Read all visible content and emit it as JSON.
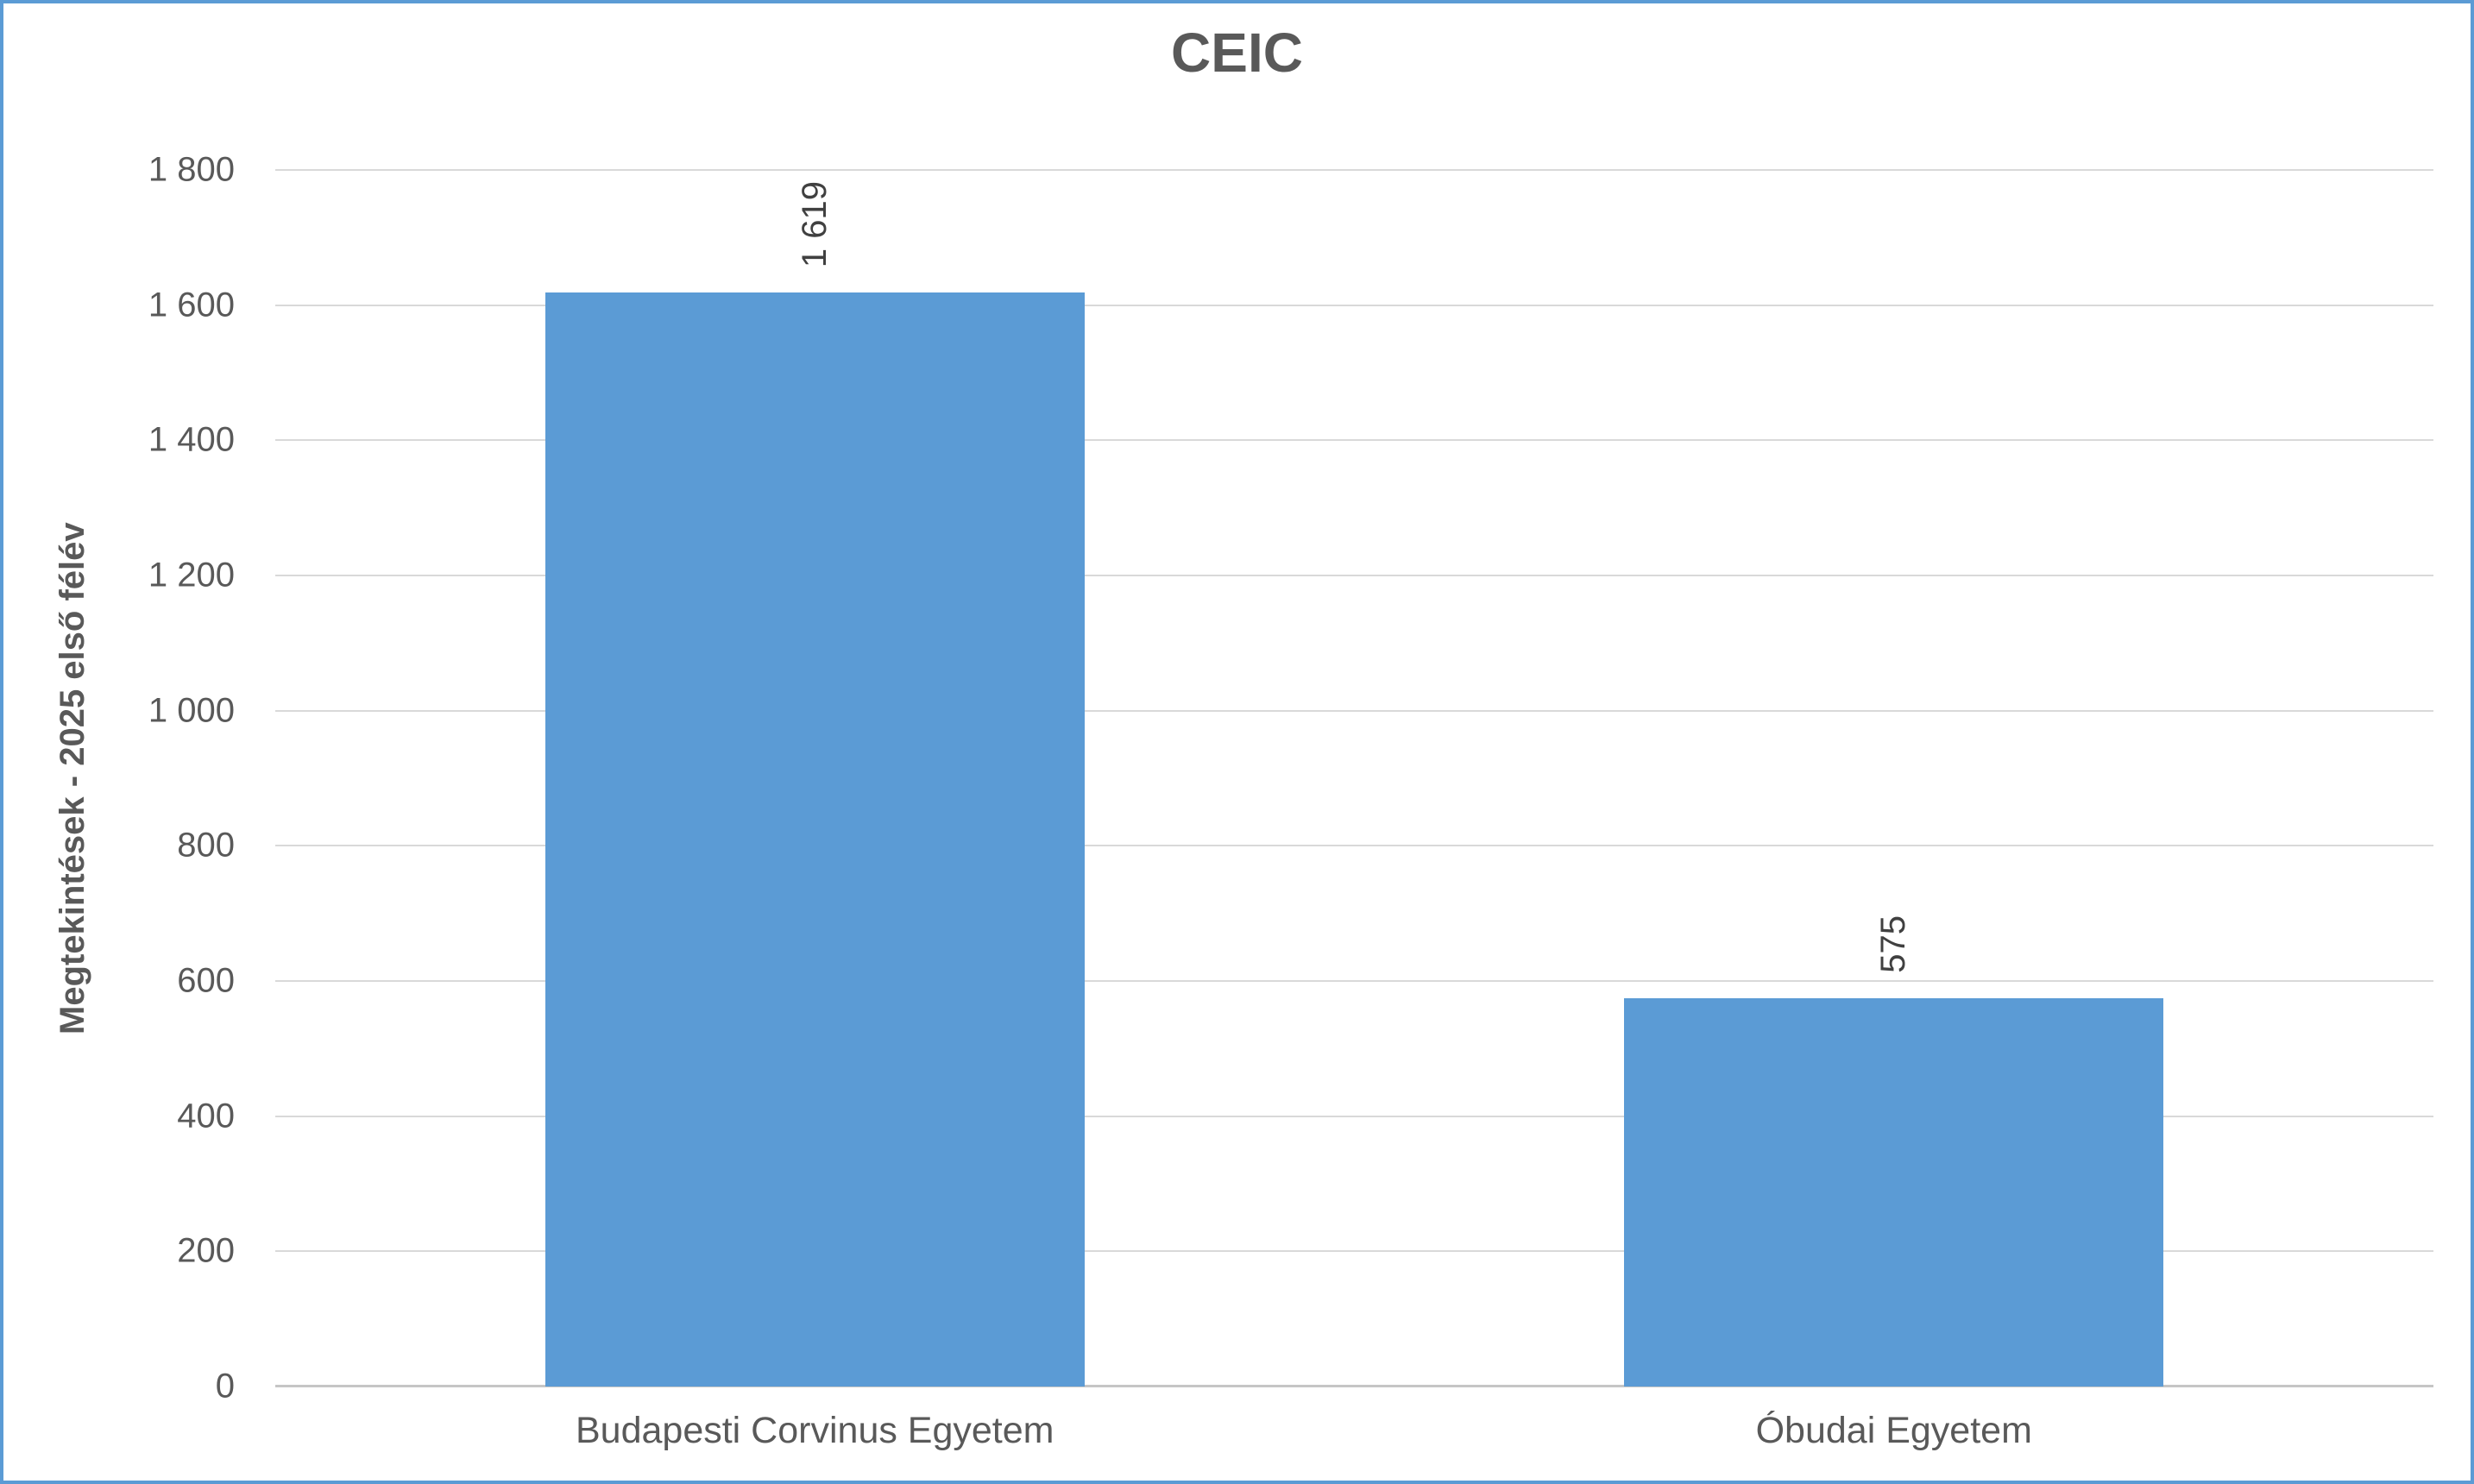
{
  "chart_data": {
    "type": "bar",
    "title": "CEIC",
    "xlabel": "",
    "ylabel": "Megtekintések - 2025 első félév",
    "categories": [
      "Budapesti Corvinus Egyetem",
      "Óbudai Egyetem"
    ],
    "values": [
      1619,
      575
    ],
    "value_labels": [
      "1 619",
      "575"
    ],
    "yticks": [
      0,
      200,
      400,
      600,
      800,
      1000,
      1200,
      1400,
      1600,
      1800
    ],
    "ytick_labels": [
      "0",
      "200",
      "400",
      "600",
      "800",
      "1 000",
      "1 200",
      "1 400",
      "1 600",
      "1 800"
    ],
    "ylim": [
      0,
      1800
    ],
    "grid": true,
    "legend": false,
    "value_label_rotation": -90,
    "colors": {
      "bar": "#5B9BD5",
      "gridline": "#D9D9D9",
      "axis_line": "#C6C6C6",
      "text": "#595959",
      "value_label_text": "#404040",
      "frame_border": "#5B9BD5",
      "background": "#FFFFFF"
    }
  }
}
